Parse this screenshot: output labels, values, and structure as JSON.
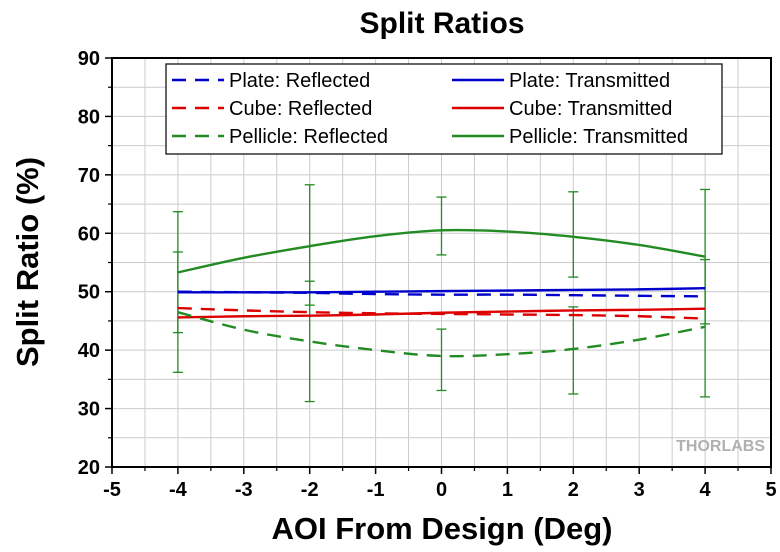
{
  "chart_data": {
    "type": "line",
    "title": "Split Ratios",
    "xlabel": "AOI From Design (Deg)",
    "ylabel": "Split Ratio (%)",
    "xlim": [
      -5,
      5
    ],
    "ylim": [
      20,
      90
    ],
    "xticks": [
      -5,
      -4,
      -3,
      -2,
      -1,
      0,
      1,
      2,
      3,
      4,
      5
    ],
    "yticks": [
      20,
      30,
      40,
      50,
      60,
      70,
      80,
      90
    ],
    "grid": true,
    "legend_position": "top",
    "watermark": "THORLABS",
    "series": [
      {
        "name": "Plate: Reflected",
        "color": "#0000CC",
        "style": "dashed",
        "x": [
          -4,
          -3,
          -2,
          -1,
          0,
          1,
          2,
          3,
          4
        ],
        "y": [
          50.0,
          49.9,
          49.8,
          49.6,
          49.5,
          49.5,
          49.4,
          49.3,
          49.2
        ]
      },
      {
        "name": "Plate: Transmitted",
        "color": "#0000CC",
        "style": "solid",
        "x": [
          -4,
          -3,
          -2,
          -1,
          0,
          1,
          2,
          3,
          4
        ],
        "y": [
          49.9,
          49.9,
          49.9,
          50.0,
          50.1,
          50.2,
          50.3,
          50.4,
          50.6
        ]
      },
      {
        "name": "Cube: Reflected",
        "color": "#DD0000",
        "style": "dashed",
        "x": [
          -4,
          -3,
          -2,
          -1,
          0,
          1,
          2,
          3,
          4
        ],
        "y": [
          47.2,
          46.8,
          46.5,
          46.3,
          46.2,
          46.1,
          46.0,
          45.8,
          45.4
        ]
      },
      {
        "name": "Cube: Transmitted",
        "color": "#DD0000",
        "style": "solid",
        "x": [
          -4,
          -3,
          -2,
          -1,
          0,
          1,
          2,
          3,
          4
        ],
        "y": [
          45.6,
          45.8,
          45.9,
          46.1,
          46.4,
          46.6,
          46.8,
          46.9,
          47.1
        ]
      },
      {
        "name": "Pellicle: Reflected",
        "color": "#228B22",
        "style": "dashed",
        "x": [
          -4,
          -3,
          -2,
          -1,
          0,
          1,
          2,
          3,
          4
        ],
        "y": [
          46.5,
          43.5,
          41.5,
          40.0,
          39.0,
          39.3,
          40.2,
          41.8,
          44.0
        ]
      },
      {
        "name": "Pellicle: Transmitted",
        "color": "#228B22",
        "style": "solid",
        "x": [
          -4,
          -3,
          -2,
          -1,
          0,
          1,
          2,
          3,
          4
        ],
        "y": [
          53.3,
          55.8,
          57.8,
          59.5,
          60.5,
          60.3,
          59.4,
          58.0,
          56.0
        ]
      }
    ],
    "error_bars": {
      "color": "#228B22",
      "points": [
        {
          "x": -4,
          "y": 53.3,
          "low": 43.0,
          "high": 63.7
        },
        {
          "x": -4,
          "y": 46.5,
          "low": 36.2,
          "high": 56.8
        },
        {
          "x": -2,
          "y": 57.8,
          "low": 47.7,
          "high": 68.3
        },
        {
          "x": -2,
          "y": 41.5,
          "low": 31.2,
          "high": 51.8
        },
        {
          "x": 0,
          "y": 60.5,
          "low": 56.3,
          "high": 66.2
        },
        {
          "x": 0,
          "y": 39.0,
          "low": 33.1,
          "high": 43.6
        },
        {
          "x": 2,
          "y": 59.4,
          "low": 52.5,
          "high": 67.1
        },
        {
          "x": 2,
          "y": 40.2,
          "low": 32.5,
          "high": 47.4
        },
        {
          "x": 4,
          "y": 56.0,
          "low": 44.5,
          "high": 67.5
        },
        {
          "x": 4,
          "y": 44.0,
          "low": 32.0,
          "high": 55.5
        }
      ]
    }
  }
}
